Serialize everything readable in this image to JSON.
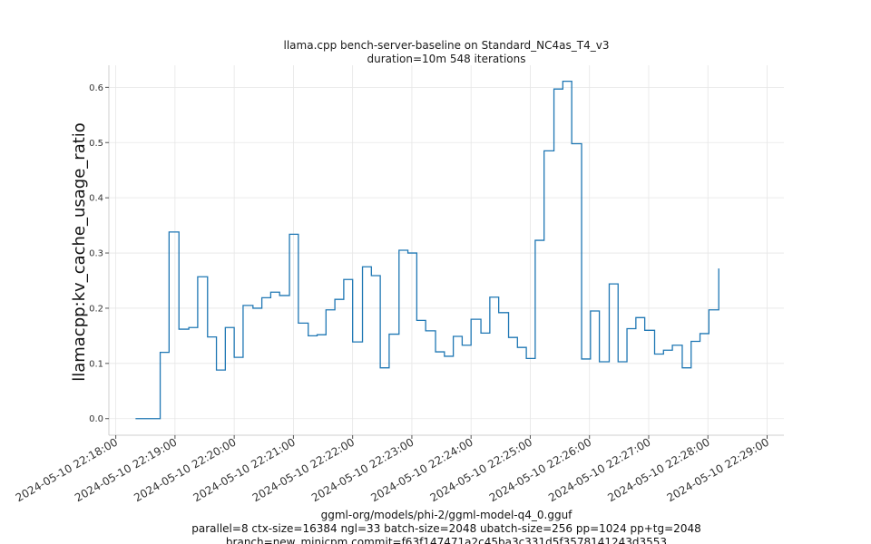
{
  "chart_data": {
    "type": "line",
    "title": "llama.cpp bench-server-baseline on Standard_NC4as_T4_v3",
    "subtitle": "duration=10m 548 iterations",
    "xlabel": "",
    "ylabel": "llamacpp:kv_cache_usage_ratio",
    "ylim": [
      -0.03,
      0.64
    ],
    "y_ticks": [
      0.0,
      0.1,
      0.2,
      0.3,
      0.4,
      0.5,
      0.6
    ],
    "y_tick_labels": [
      "0.0",
      "0.1",
      "0.2",
      "0.3",
      "0.4",
      "0.5",
      "0.6"
    ],
    "xlim": [
      "2024-05-10 22:17:53",
      "2024-05-10 22:29:17"
    ],
    "x_ticks": [
      "2024-05-10 22:18:00",
      "2024-05-10 22:19:00",
      "2024-05-10 22:20:00",
      "2024-05-10 22:21:00",
      "2024-05-10 22:22:00",
      "2024-05-10 22:23:00",
      "2024-05-10 22:24:00",
      "2024-05-10 22:25:00",
      "2024-05-10 22:26:00",
      "2024-05-10 22:27:00",
      "2024-05-10 22:28:00",
      "2024-05-10 22:29:00"
    ],
    "x_tick_labels": [
      "2024-05-10 22:18:00",
      "2024-05-10 22:19:00",
      "2024-05-10 22:20:00",
      "2024-05-10 22:21:00",
      "2024-05-10 22:22:00",
      "2024-05-10 22:23:00",
      "2024-05-10 22:24:00",
      "2024-05-10 22:25:00",
      "2024-05-10 22:26:00",
      "2024-05-10 22:27:00",
      "2024-05-10 22:28:00",
      "2024-05-10 22:29:00"
    ],
    "grid": true,
    "legend": "none",
    "color": "#1f77b4",
    "series": [
      {
        "step": "pre",
        "points": [
          [
            "2024-05-10 22:18:20",
            0.0
          ],
          [
            "2024-05-10 22:18:36",
            0.0
          ],
          [
            "2024-05-10 22:18:45",
            0.12
          ],
          [
            "2024-05-10 22:18:54",
            0.338
          ],
          [
            "2024-05-10 22:19:04",
            0.162
          ],
          [
            "2024-05-10 22:19:14",
            0.165
          ],
          [
            "2024-05-10 22:19:23",
            0.257
          ],
          [
            "2024-05-10 22:19:33",
            0.148
          ],
          [
            "2024-05-10 22:19:42",
            0.088
          ],
          [
            "2024-05-10 22:19:51",
            0.165
          ],
          [
            "2024-05-10 22:20:00",
            0.111
          ],
          [
            "2024-05-10 22:20:09",
            0.205
          ],
          [
            "2024-05-10 22:20:19",
            0.2
          ],
          [
            "2024-05-10 22:20:28",
            0.219
          ],
          [
            "2024-05-10 22:20:37",
            0.229
          ],
          [
            "2024-05-10 22:20:46",
            0.223
          ],
          [
            "2024-05-10 22:20:56",
            0.334
          ],
          [
            "2024-05-10 22:21:05",
            0.173
          ],
          [
            "2024-05-10 22:21:15",
            0.15
          ],
          [
            "2024-05-10 22:21:24",
            0.152
          ],
          [
            "2024-05-10 22:21:33",
            0.197
          ],
          [
            "2024-05-10 22:21:42",
            0.216
          ],
          [
            "2024-05-10 22:21:51",
            0.252
          ],
          [
            "2024-05-10 22:22:00",
            0.139
          ],
          [
            "2024-05-10 22:22:10",
            0.275
          ],
          [
            "2024-05-10 22:22:19",
            0.259
          ],
          [
            "2024-05-10 22:22:28",
            0.092
          ],
          [
            "2024-05-10 22:22:37",
            0.153
          ],
          [
            "2024-05-10 22:22:47",
            0.305
          ],
          [
            "2024-05-10 22:22:56",
            0.3
          ],
          [
            "2024-05-10 22:23:05",
            0.178
          ],
          [
            "2024-05-10 22:23:14",
            0.159
          ],
          [
            "2024-05-10 22:23:24",
            0.121
          ],
          [
            "2024-05-10 22:23:33",
            0.113
          ],
          [
            "2024-05-10 22:23:42",
            0.149
          ],
          [
            "2024-05-10 22:23:51",
            0.133
          ],
          [
            "2024-05-10 22:24:00",
            0.18
          ],
          [
            "2024-05-10 22:24:10",
            0.155
          ],
          [
            "2024-05-10 22:24:19",
            0.22
          ],
          [
            "2024-05-10 22:24:28",
            0.192
          ],
          [
            "2024-05-10 22:24:38",
            0.147
          ],
          [
            "2024-05-10 22:24:47",
            0.129
          ],
          [
            "2024-05-10 22:24:56",
            0.109
          ],
          [
            "2024-05-10 22:25:05",
            0.323
          ],
          [
            "2024-05-10 22:25:14",
            0.485
          ],
          [
            "2024-05-10 22:25:24",
            0.597
          ],
          [
            "2024-05-10 22:25:33",
            0.611
          ],
          [
            "2024-05-10 22:25:42",
            0.498
          ],
          [
            "2024-05-10 22:25:52",
            0.108
          ],
          [
            "2024-05-10 22:26:01",
            0.195
          ],
          [
            "2024-05-10 22:26:10",
            0.103
          ],
          [
            "2024-05-10 22:26:20",
            0.244
          ],
          [
            "2024-05-10 22:26:29",
            0.103
          ],
          [
            "2024-05-10 22:26:38",
            0.163
          ],
          [
            "2024-05-10 22:26:47",
            0.183
          ],
          [
            "2024-05-10 22:26:56",
            0.16
          ],
          [
            "2024-05-10 22:27:06",
            0.117
          ],
          [
            "2024-05-10 22:27:15",
            0.124
          ],
          [
            "2024-05-10 22:27:24",
            0.133
          ],
          [
            "2024-05-10 22:27:34",
            0.092
          ],
          [
            "2024-05-10 22:27:43",
            0.14
          ],
          [
            "2024-05-10 22:27:52",
            0.154
          ],
          [
            "2024-05-10 22:28:01",
            0.197
          ],
          [
            "2024-05-10 22:28:11",
            0.272
          ]
        ]
      }
    ]
  },
  "footer": {
    "line1": "ggml-org/models/phi-2/ggml-model-q4_0.gguf",
    "line2": "parallel=8 ctx-size=16384 ngl=33 batch-size=2048 ubatch-size=256 pp=1024 pp+tg=2048",
    "line3": "branch=new_minicpm commit=f63f147471a2c45ba3c331d5f3578141243d3553"
  }
}
